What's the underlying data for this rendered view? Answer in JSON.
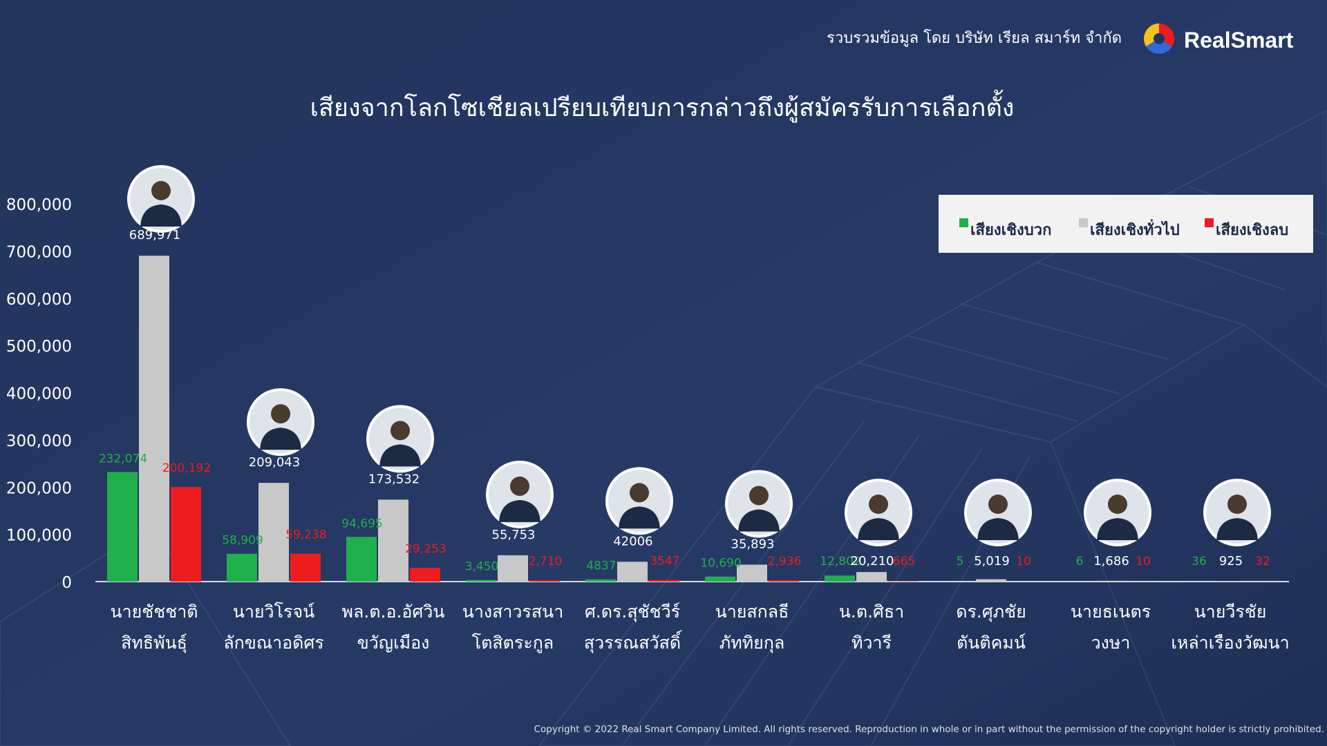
{
  "header": {
    "source_text": "รวบรวมข้อมูล โดย บริษัท เรียล สมาร์ท จำกัด",
    "brand_name": "RealSmart"
  },
  "footer": {
    "copyright": "Copyright © 2022 Real Smart Company Limited. All rights reserved. Reproduction in whole or in part without the permission of the copyright holder is strictly prohibited."
  },
  "colors": {
    "background": "#24365f",
    "positive": "#1fb04c",
    "neutral": "#c8c8c8",
    "negative": "#ee1c1c"
  },
  "chart_data": {
    "type": "bar",
    "title": "เสียงจากโลกโซเชียลเปรียบเทียบการกล่าวถึงผู้สมัครรับการเลือกตั้ง",
    "xlabel": "",
    "ylabel": "",
    "ylim": [
      0,
      800000
    ],
    "yticks": [
      "0",
      "100,000",
      "200,000",
      "300,000",
      "400,000",
      "500,000",
      "600,000",
      "700,000",
      "800,000"
    ],
    "grid": false,
    "legend_position": "top-right",
    "categories": [
      [
        "นายชัชชาติ",
        "สิทธิพันธุ์"
      ],
      [
        "นายวิโรจน์",
        "ลักขณาอดิศร"
      ],
      [
        "พล.ต.อ.อัศวิน",
        "ขวัญเมือง"
      ],
      [
        "นางสาวรสนา",
        "โตสิตระกูล"
      ],
      [
        "ศ.ดร.สุชัชวีร์",
        "สุวรรณสวัสดิ์"
      ],
      [
        "นายสกลธี",
        "ภัททิยกุล"
      ],
      [
        "น.ต.ศิธา",
        "ทิวารี"
      ],
      [
        "ดร.ศุภชัย",
        "ตันติคมน์"
      ],
      [
        "นายธเนตร",
        "วงษา"
      ],
      [
        "นายวีรชัย",
        "เหล่าเรืองวัฒนา"
      ]
    ],
    "series": [
      {
        "name": "เสียงเชิงบวก",
        "values": [
          232074,
          58909,
          94695,
          3450,
          4837,
          10690,
          12802,
          5,
          6,
          36
        ],
        "labels": [
          "232,074",
          "58,909",
          "94,695",
          "3,450",
          "4837",
          "10,690",
          "12,802",
          "5",
          "6",
          "36"
        ]
      },
      {
        "name": "เสียงเชิงทั่วไป",
        "values": [
          689971,
          209043,
          173532,
          55753,
          42006,
          35893,
          20210,
          5019,
          1686,
          925
        ],
        "labels": [
          "689,971",
          "209,043",
          "173,532",
          "55,753",
          "42006",
          "35,893",
          "20,210",
          "5,019",
          "1,686",
          "925"
        ]
      },
      {
        "name": "เสียงเชิงลบ",
        "values": [
          200192,
          59238,
          29253,
          2710,
          3547,
          2936,
          665,
          10,
          10,
          32
        ],
        "labels": [
          "200,192",
          "59,238",
          "29,253",
          "2,710",
          "3547",
          "2,936",
          "665",
          "10",
          "10",
          "32"
        ]
      }
    ]
  }
}
